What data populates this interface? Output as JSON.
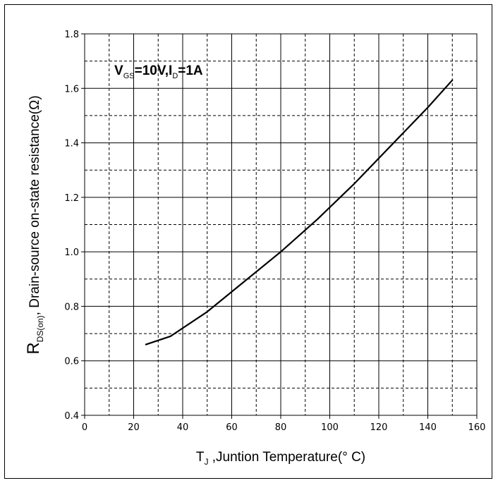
{
  "chart_data": {
    "type": "line",
    "xlim": [
      0,
      160
    ],
    "ylim": [
      0.4,
      1.8
    ],
    "x_ticks": [
      0,
      20,
      40,
      60,
      80,
      100,
      120,
      140,
      160
    ],
    "x_tick_labels": [
      "0",
      "20",
      "40",
      "60",
      "80",
      "100",
      "120",
      "140",
      "160"
    ],
    "y_ticks": [
      0.4,
      0.6,
      0.8,
      1.0,
      1.2,
      1.4,
      1.6,
      1.8
    ],
    "y_tick_labels": [
      "0.4",
      "0.6",
      "0.8",
      "1.0",
      "1.2",
      "1.4",
      "1.6",
      "1.8"
    ],
    "grid": true,
    "grid_minor": "dashed",
    "xlabel": {
      "main": "T",
      "sub": "J",
      "rest": " ,Juntion Temperature(° C)"
    },
    "ylabel": {
      "main": "R",
      "sub": "DS(on)",
      "rest": ", Drain-source on-state resistance(Ω)"
    },
    "annotation": {
      "v": "V",
      "v_sub": "GS",
      "v_rest": "=10V,I",
      "i_sub": "D",
      "i_rest": "=1A"
    },
    "series": [
      {
        "x": [
          25,
          35,
          50,
          65,
          80,
          95,
          110,
          125,
          140,
          150
        ],
        "y": [
          0.66,
          0.69,
          0.78,
          0.89,
          1.0,
          1.12,
          1.25,
          1.39,
          1.53,
          1.63
        ]
      }
    ]
  }
}
